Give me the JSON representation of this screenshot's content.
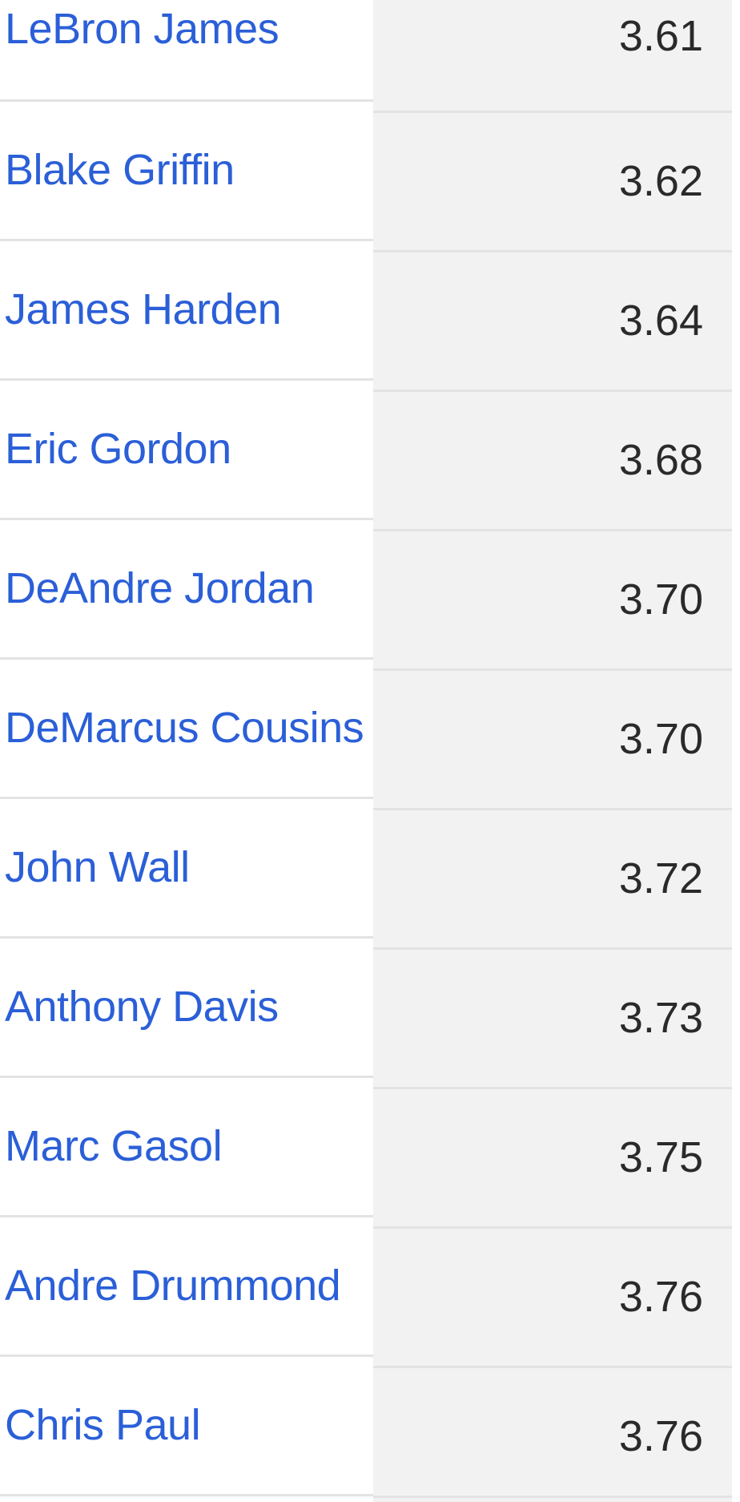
{
  "table": {
    "rows": [
      {
        "player": "LeBron James",
        "value": "3.61"
      },
      {
        "player": "Blake Griffin",
        "value": "3.62"
      },
      {
        "player": "James Harden",
        "value": "3.64"
      },
      {
        "player": "Eric Gordon",
        "value": "3.68"
      },
      {
        "player": "DeAndre Jordan",
        "value": "3.70"
      },
      {
        "player": "DeMarcus Cousins",
        "value": "3.70"
      },
      {
        "player": "John Wall",
        "value": "3.72"
      },
      {
        "player": "Anthony Davis",
        "value": "3.73"
      },
      {
        "player": "Marc Gasol",
        "value": "3.75"
      },
      {
        "player": "Andre Drummond",
        "value": "3.76"
      },
      {
        "player": "Chris Paul",
        "value": "3.76"
      }
    ]
  },
  "colors": {
    "link": "#2b5fd8",
    "value_text": "#2a2a2a",
    "value_background": "#f2f2f2",
    "divider": "#e3e3e3"
  }
}
